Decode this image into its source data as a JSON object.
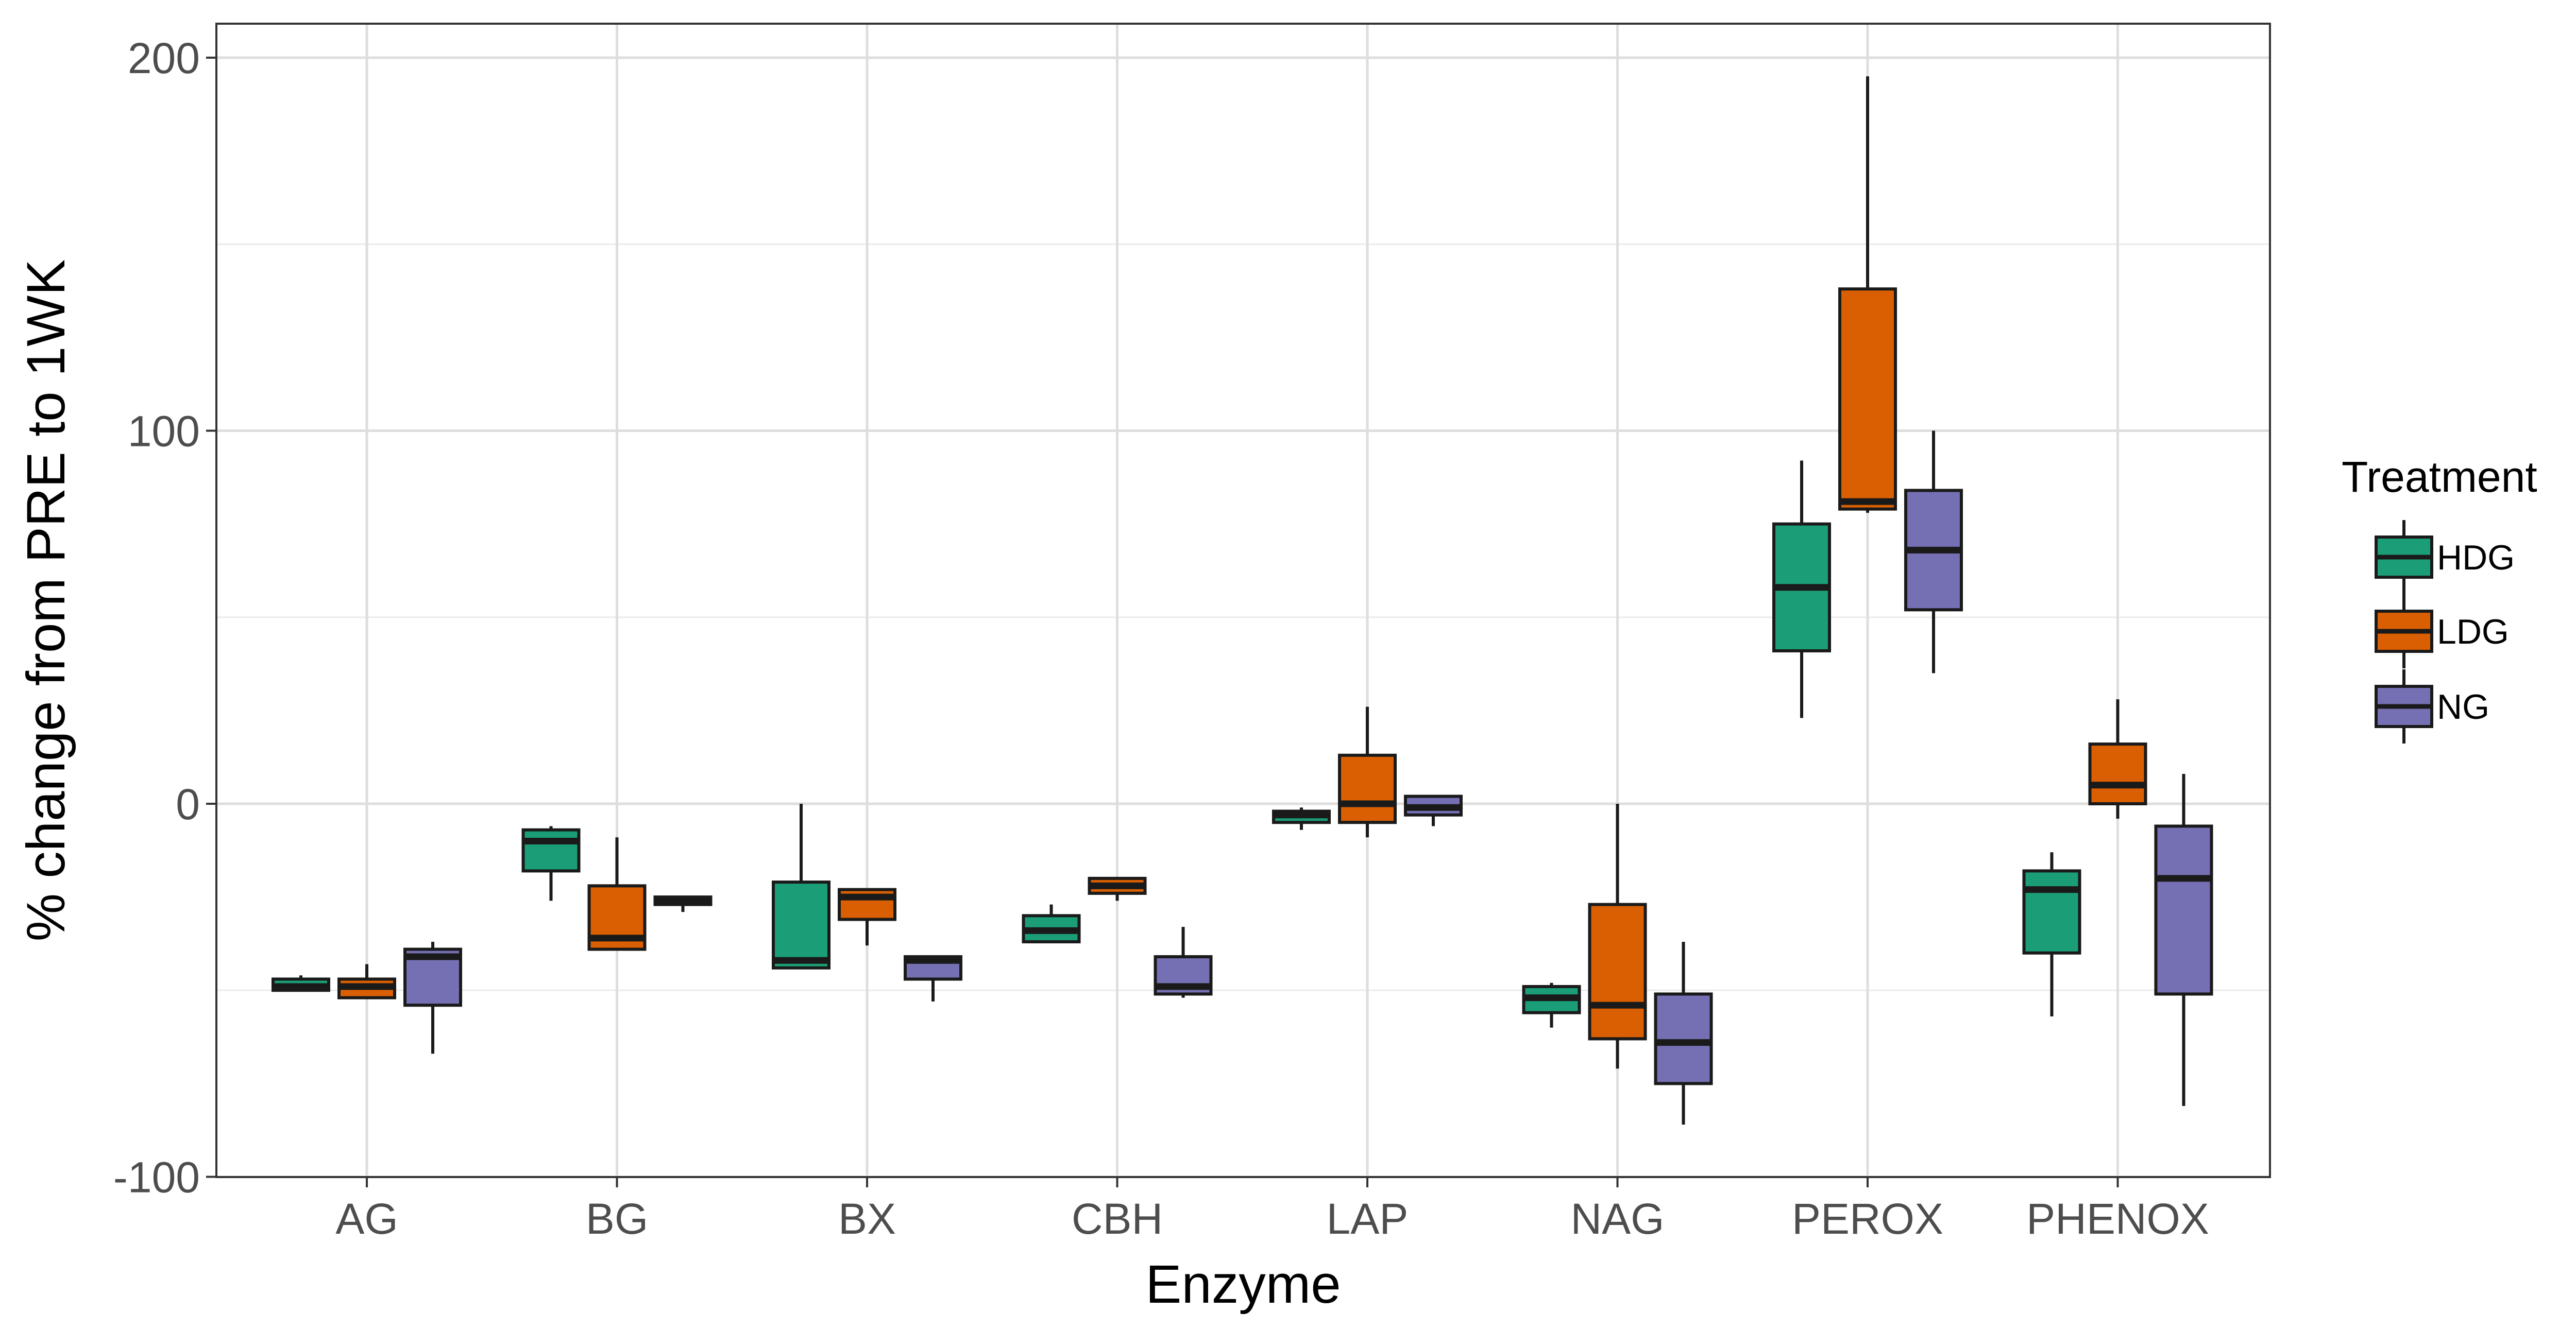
{
  "chart_data": {
    "type": "box",
    "xlabel": "Enzyme",
    "ylabel": "% change from PRE to 1WK",
    "ylim": [
      -100,
      210
    ],
    "yticks": [
      -100,
      0,
      100,
      200
    ],
    "y_tick_labels": [
      "-100",
      "0",
      "100",
      "200"
    ],
    "grid": true,
    "categories": [
      "AG",
      "BG",
      "BX",
      "CBH",
      "LAP",
      "NAG",
      "PEROX",
      "PHENOX"
    ],
    "legend": {
      "title": "Treatment",
      "position": "right",
      "entries": [
        "HDG",
        "LDG",
        "NG"
      ]
    },
    "series": [
      {
        "name": "HDG",
        "color": "#1b9e77",
        "boxes": [
          {
            "min": -50,
            "q1": -50,
            "median": -49,
            "q3": -47,
            "max": -46
          },
          {
            "min": -26,
            "q1": -18,
            "median": -10,
            "q3": -7,
            "max": -6
          },
          {
            "min": -44,
            "q1": -44,
            "median": -42,
            "q3": -21,
            "max": 0
          },
          {
            "min": -37,
            "q1": -37,
            "median": -34,
            "q3": -30,
            "max": -27
          },
          {
            "min": -7,
            "q1": -5,
            "median": -3,
            "q3": -2,
            "max": -1
          },
          {
            "min": -60,
            "q1": -56,
            "median": -52,
            "q3": -49,
            "max": -48
          },
          {
            "min": 23,
            "q1": 41,
            "median": 58,
            "q3": 75,
            "max": 92
          },
          {
            "min": -57,
            "q1": -40,
            "median": -23,
            "q3": -18,
            "max": -13
          }
        ]
      },
      {
        "name": "LDG",
        "color": "#d95f02",
        "boxes": [
          {
            "min": -52,
            "q1": -52,
            "median": -49,
            "q3": -47,
            "max": -43
          },
          {
            "min": -39,
            "q1": -39,
            "median": -36,
            "q3": -22,
            "max": -9
          },
          {
            "min": -38,
            "q1": -31,
            "median": -25,
            "q3": -23,
            "max": -23
          },
          {
            "min": -26,
            "q1": -24,
            "median": -22,
            "q3": -20,
            "max": -20
          },
          {
            "min": -9,
            "q1": -5,
            "median": 0,
            "q3": 13,
            "max": 26
          },
          {
            "min": -71,
            "q1": -63,
            "median": -54,
            "q3": -27,
            "max": 0
          },
          {
            "min": 78,
            "q1": 79,
            "median": 81,
            "q3": 138,
            "max": 195
          },
          {
            "min": -4,
            "q1": 0,
            "median": 5,
            "q3": 16,
            "max": 28
          }
        ]
      },
      {
        "name": "NG",
        "color": "#7570b3",
        "boxes": [
          {
            "min": -67,
            "q1": -54,
            "median": -41,
            "q3": -39,
            "max": -37
          },
          {
            "min": -29,
            "q1": -27,
            "median": -26,
            "q3": -25,
            "max": -25
          },
          {
            "min": -53,
            "q1": -47,
            "median": -42,
            "q3": -41,
            "max": -41
          },
          {
            "min": -52,
            "q1": -51,
            "median": -49,
            "q3": -41,
            "max": -33
          },
          {
            "min": -6,
            "q1": -3,
            "median": -1,
            "q3": 2,
            "max": 2
          },
          {
            "min": -86,
            "q1": -75,
            "median": -64,
            "q3": -51,
            "max": -37
          },
          {
            "min": 35,
            "q1": 52,
            "median": 68,
            "q3": 84,
            "max": 100
          },
          {
            "min": -81,
            "q1": -51,
            "median": -20,
            "q3": -6,
            "max": 8
          }
        ]
      }
    ]
  }
}
